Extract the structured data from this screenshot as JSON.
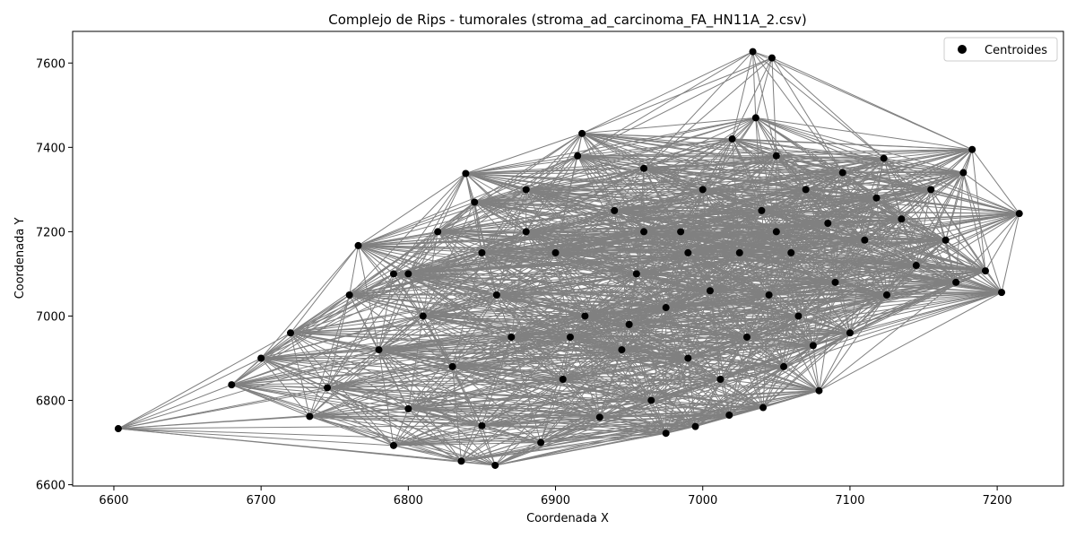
{
  "chart_data": {
    "type": "scatter",
    "title": "Complejo de Rips - tumorales (stroma_ad_carcinoma_FA_HN11A_2.csv)",
    "xlabel": "Coordenada X",
    "ylabel": "Coordenada Y",
    "xlim": [
      6572,
      7245
    ],
    "ylim": [
      6597,
      7675
    ],
    "xticks": [
      6600,
      6700,
      6800,
      6900,
      7000,
      7100,
      7200
    ],
    "yticks": [
      6600,
      6800,
      7000,
      7200,
      7400,
      7600
    ],
    "legend": {
      "label": "Centroides",
      "position": "top-right"
    },
    "colors": {
      "edges": "#808080",
      "points": "#000000"
    },
    "series": [
      {
        "name": "Centroides",
        "points": [
          [
            6603,
            6733
          ],
          [
            6680,
            6837
          ],
          [
            6733,
            6762
          ],
          [
            6766,
            7167
          ],
          [
            6790,
            6693
          ],
          [
            6836,
            6656
          ],
          [
            6839,
            7338
          ],
          [
            6859,
            6646
          ],
          [
            6918,
            7433
          ],
          [
            6975,
            6722
          ],
          [
            6995,
            6738
          ],
          [
            7018,
            6765
          ],
          [
            7034,
            7627
          ],
          [
            7041,
            6783
          ],
          [
            7047,
            7612
          ],
          [
            7079,
            6823
          ],
          [
            7123,
            7374
          ],
          [
            7177,
            7340
          ],
          [
            7183,
            7395
          ],
          [
            7192,
            7107
          ],
          [
            7203,
            7056
          ],
          [
            7215,
            7243
          ],
          [
            6700,
            6900
          ],
          [
            6720,
            6960
          ],
          [
            6745,
            6830
          ],
          [
            6760,
            7050
          ],
          [
            6780,
            6920
          ],
          [
            6790,
            7100
          ],
          [
            6800,
            6780
          ],
          [
            6810,
            7000
          ],
          [
            6820,
            7200
          ],
          [
            6830,
            6880
          ],
          [
            6845,
            7270
          ],
          [
            6850,
            6740
          ],
          [
            6860,
            7050
          ],
          [
            6870,
            6950
          ],
          [
            6880,
            7300
          ],
          [
            6890,
            6700
          ],
          [
            6900,
            7150
          ],
          [
            6905,
            6850
          ],
          [
            6915,
            7380
          ],
          [
            6920,
            7000
          ],
          [
            6930,
            6760
          ],
          [
            6940,
            7250
          ],
          [
            6945,
            6920
          ],
          [
            6955,
            7100
          ],
          [
            6960,
            7350
          ],
          [
            6965,
            6800
          ],
          [
            6975,
            7020
          ],
          [
            6985,
            7200
          ],
          [
            6990,
            6900
          ],
          [
            7000,
            7300
          ],
          [
            7005,
            7060
          ],
          [
            7012,
            6850
          ],
          [
            7020,
            7420
          ],
          [
            7025,
            7150
          ],
          [
            7030,
            6950
          ],
          [
            7036,
            7470
          ],
          [
            7040,
            7250
          ],
          [
            7045,
            7050
          ],
          [
            7050,
            7380
          ],
          [
            7055,
            6880
          ],
          [
            7060,
            7150
          ],
          [
            7065,
            7000
          ],
          [
            7070,
            7300
          ],
          [
            7075,
            6930
          ],
          [
            7085,
            7220
          ],
          [
            7090,
            7080
          ],
          [
            7095,
            7340
          ],
          [
            7100,
            6960
          ],
          [
            7110,
            7180
          ],
          [
            7118,
            7280
          ],
          [
            7125,
            7050
          ],
          [
            7135,
            7230
          ],
          [
            7145,
            7120
          ],
          [
            7155,
            7300
          ],
          [
            7165,
            7180
          ],
          [
            7172,
            7080
          ],
          [
            6880,
            7200
          ],
          [
            6950,
            6980
          ],
          [
            6990,
            7150
          ],
          [
            6910,
            6950
          ],
          [
            6850,
            7150
          ],
          [
            6800,
            7100
          ],
          [
            7050,
            7200
          ],
          [
            6960,
            7200
          ]
        ]
      }
    ],
    "edge_threshold": 300
  }
}
